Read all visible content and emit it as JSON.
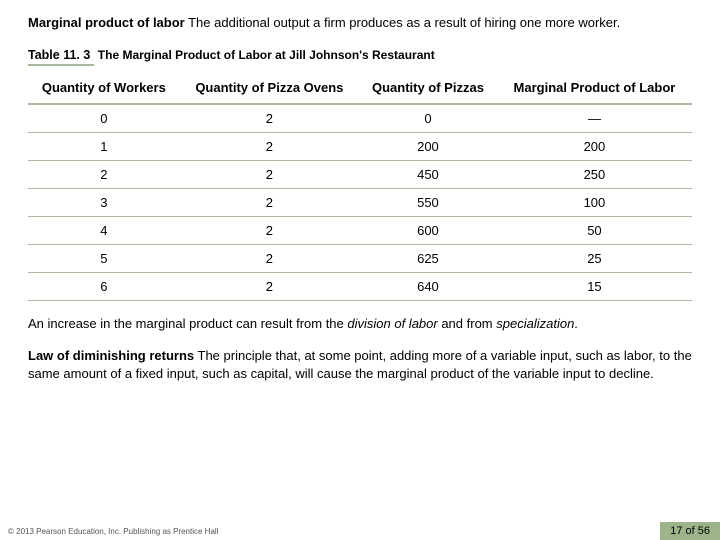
{
  "definition1": {
    "term": "Marginal product of labor",
    "text": "  The additional output a firm produces as a result of hiring one more worker."
  },
  "table_caption": {
    "number": "Table 11. 3",
    "title": "The Marginal Product of Labor at Jill Johnson's Restaurant"
  },
  "table": {
    "columns": [
      "Quantity of Workers",
      "Quantity of Pizza Ovens",
      "Quantity of Pizzas",
      "Marginal Product of Labor"
    ],
    "rows": [
      [
        "0",
        "2",
        "0",
        "—"
      ],
      [
        "1",
        "2",
        "200",
        "200"
      ],
      [
        "2",
        "2",
        "450",
        "250"
      ],
      [
        "3",
        "2",
        "550",
        "100"
      ],
      [
        "4",
        "2",
        "600",
        "50"
      ],
      [
        "5",
        "2",
        "625",
        "25"
      ],
      [
        "6",
        "2",
        "640",
        "15"
      ]
    ],
    "header_border_color": "#a8b89f",
    "row_border_color": "#a8b89f",
    "font_size_pt": 13
  },
  "caption_after": {
    "pre": "An increase in the marginal product can result from the ",
    "em1": "division of labor",
    "mid": " and from ",
    "em2": "specialization",
    "post": "."
  },
  "law": {
    "term": "Law of diminishing returns",
    "text": "  The principle that, at some point, adding more of a variable input, such as labor, to the same amount of a fixed input, such as capital, will cause the marginal product of the variable input to decline."
  },
  "footer": {
    "copyright_text": "© 2013 Pearson Education, Inc. Publishing as Prentice Hall",
    "page_label": "17 of 56",
    "badge_color": "#9db38a"
  },
  "colors": {
    "background": "#ffffff",
    "text": "#000000",
    "accent_green": "#a8b89f"
  }
}
